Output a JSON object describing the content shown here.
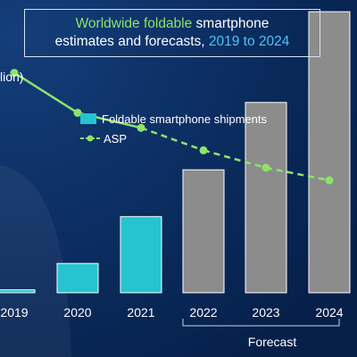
{
  "title": {
    "part1": "Worldwide foldable",
    "part2": " smartphone",
    "part3": "estimates and forecasts, ",
    "part4": "2019 to 2024"
  },
  "unit_label": "lion)",
  "legend": {
    "bars": "Foldable smartphone shipments",
    "line": "ASP"
  },
  "forecast_label": "Forecast",
  "colors": {
    "background": "#0a2a5a",
    "bar_actual": "#25c4cf",
    "bar_forecast": "#8c8c8c",
    "asp_line": "#8fe36a"
  },
  "chart_data": {
    "type": "bar",
    "categories": [
      "2019",
      "2020",
      "2021",
      "2022",
      "2023",
      "2024"
    ],
    "series": [
      {
        "name": "Foldable smartphone shipments",
        "type": "bar",
        "values": [
          1,
          10,
          26,
          42,
          65,
          96
        ],
        "forecast_from_index": 3
      },
      {
        "name": "ASP",
        "type": "line",
        "values": [
          88,
          72,
          66,
          57,
          50,
          45
        ],
        "forecast_from_index": 2
      }
    ],
    "ylim": [
      0,
      100
    ],
    "y2lim": [
      0,
      100
    ]
  }
}
